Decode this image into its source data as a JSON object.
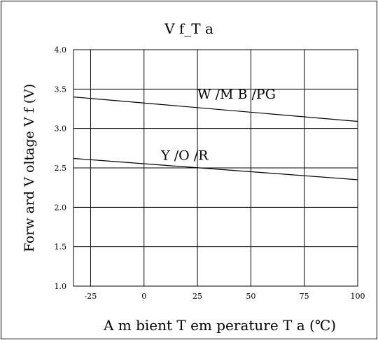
{
  "chart_data": {
    "type": "line",
    "title": "V f_T a",
    "xlabel": "A m bient T em perature T a  (℃)",
    "ylabel": "Forw ard V oltage V f  (V)",
    "x_ticks": [
      -25,
      0,
      25,
      50,
      75,
      100
    ],
    "x_tick_labels": [
      "-25",
      "0",
      "25",
      "50",
      "75",
      "100"
    ],
    "y_ticks": [
      1.0,
      1.5,
      2.0,
      2.5,
      3.0,
      3.5,
      4.0
    ],
    "y_tick_labels": [
      "1.0",
      "1.5",
      "2.0",
      "2.5",
      "3.0",
      "3.5",
      "4.0"
    ],
    "xlim": [
      -33,
      100
    ],
    "ylim": [
      1.0,
      4.0
    ],
    "grid": true,
    "series": [
      {
        "name": "W /M B /PG",
        "x": [
          -33,
          100
        ],
        "y": [
          3.4,
          3.09
        ],
        "color": "#000000"
      },
      {
        "name": "Y /O /R",
        "x": [
          -33,
          100
        ],
        "y": [
          2.62,
          2.35
        ],
        "color": "#000000"
      }
    ],
    "annotations": [
      {
        "text": "W /M B /PG",
        "x": 25,
        "y": 3.38
      },
      {
        "text": "Y /O /R",
        "x": 8,
        "y": 2.6
      }
    ]
  }
}
